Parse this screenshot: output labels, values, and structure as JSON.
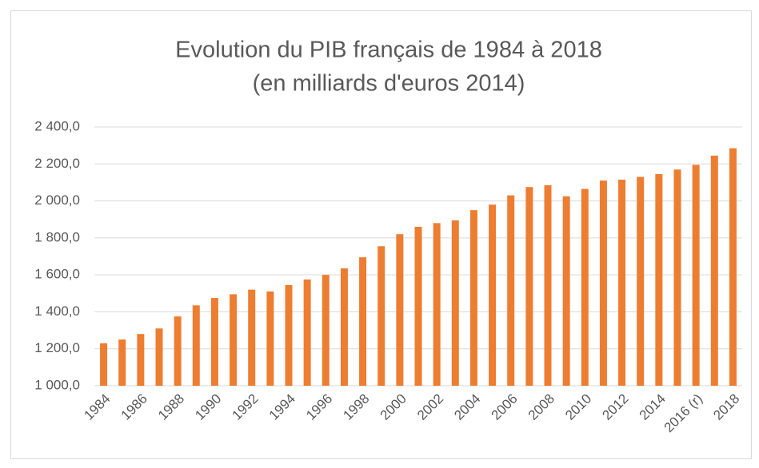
{
  "chart_data": {
    "type": "bar",
    "title": "Evolution du PIB français de 1984 à 2018",
    "subtitle": "(en milliards d'euros 2014)",
    "categories": [
      "1984",
      null,
      "1986",
      null,
      "1988",
      null,
      "1990",
      null,
      "1992",
      null,
      "1994",
      null,
      "1996",
      null,
      "1998",
      null,
      "2000",
      null,
      "2002",
      null,
      "2004",
      null,
      "2006",
      null,
      "2008",
      null,
      "2010",
      null,
      "2012",
      null,
      "2014",
      null,
      "2016 (r)",
      null,
      "2018"
    ],
    "values": [
      1230,
      1250,
      1280,
      1310,
      1375,
      1435,
      1475,
      1495,
      1520,
      1510,
      1545,
      1575,
      1600,
      1635,
      1695,
      1755,
      1820,
      1860,
      1880,
      1895,
      1950,
      1980,
      2030,
      2075,
      2085,
      2025,
      2065,
      2110,
      2115,
      2130,
      2145,
      2170,
      2195,
      2245,
      2285
    ],
    "color": "#ed7d31",
    "ylim": [
      1000,
      2400
    ],
    "yticks": [
      {
        "value": 1000,
        "label": "1 000,0"
      },
      {
        "value": 1200,
        "label": "1 200,0"
      },
      {
        "value": 1400,
        "label": "1 400,0"
      },
      {
        "value": 1600,
        "label": "1 600,0"
      },
      {
        "value": 1800,
        "label": "1 800,0"
      },
      {
        "value": 2000,
        "label": "2 000,0"
      },
      {
        "value": 2200,
        "label": "2 200,0"
      },
      {
        "value": 2400,
        "label": "2 400,0"
      }
    ],
    "grid": true
  }
}
